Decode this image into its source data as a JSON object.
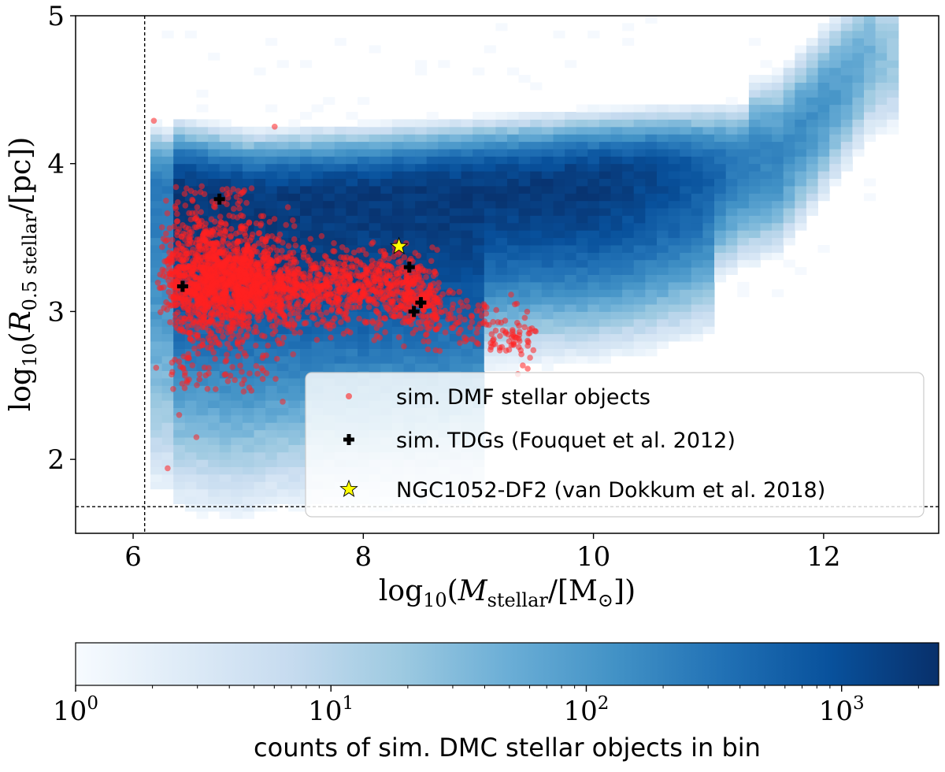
{
  "chart_data": {
    "type": "scatter",
    "xlabel": "log10(M_stellar/[M⊙])",
    "ylabel": "log10(R_0.5 stellar/[pc])",
    "xlim": [
      5.5,
      13.0
    ],
    "ylim": [
      1.5,
      5.0
    ],
    "x_ticks": [
      6,
      8,
      10,
      12
    ],
    "y_ticks": [
      2,
      3,
      4,
      5
    ],
    "reference_lines": {
      "vertical_x": 6.1,
      "horizontal_y": 1.68,
      "style": "dashed"
    },
    "legend": {
      "position": "lower-right",
      "entries": [
        "sim. DMF stellar objects",
        "sim. TDGs (Fouquet et al. 2012)",
        "NGC1052-DF2 (van Dokkum et al. 2018)"
      ]
    },
    "background_histogram": {
      "description_series": "sim. DMC stellar objects",
      "ridge": [
        {
          "x": 6.2,
          "y": 3.85
        },
        {
          "x": 7.0,
          "y": 3.75
        },
        {
          "x": 8.0,
          "y": 3.78
        },
        {
          "x": 9.0,
          "y": 3.83
        },
        {
          "x": 10.0,
          "y": 3.88
        },
        {
          "x": 11.0,
          "y": 3.95
        },
        {
          "x": 11.6,
          "y": 4.05
        },
        {
          "x": 12.0,
          "y": 4.4
        },
        {
          "x": 12.4,
          "y": 4.75
        }
      ]
    },
    "series": [
      {
        "name": "sim. DMF stellar objects",
        "marker": "circle",
        "color": "#ff2020",
        "cluster_centers": [
          {
            "x": 6.6,
            "y": 3.2,
            "n": 1500
          },
          {
            "x": 7.9,
            "y": 3.17,
            "n": 1100
          },
          {
            "x": 8.9,
            "y": 3.0,
            "n": 150
          }
        ]
      },
      {
        "name": "sim. TDGs (Fouquet et al. 2012)",
        "marker": "plus",
        "color": "#000000",
        "points": [
          {
            "x": 6.75,
            "y": 3.76
          },
          {
            "x": 6.43,
            "y": 3.17
          },
          {
            "x": 8.4,
            "y": 3.3
          },
          {
            "x": 8.5,
            "y": 3.06
          },
          {
            "x": 8.44,
            "y": 3.0
          }
        ]
      },
      {
        "name": "NGC1052-DF2 (van Dokkum et al. 2018)",
        "marker": "star",
        "color": "#ffff00",
        "points": [
          {
            "x": 8.31,
            "y": 3.44
          }
        ]
      }
    ],
    "colorbar": {
      "label": "counts of sim. DMC stellar objects in bin",
      "scale": "log",
      "range": [
        1,
        2400
      ],
      "ticks": [
        {
          "value": 1,
          "base": "10",
          "exp": "0"
        },
        {
          "value": 10,
          "base": "10",
          "exp": "1"
        },
        {
          "value": 100,
          "base": "10",
          "exp": "2"
        },
        {
          "value": 1000,
          "base": "10",
          "exp": "3"
        }
      ],
      "colormap": "Blues",
      "color_low": "#f7fbff",
      "color_high": "#08306b"
    }
  }
}
